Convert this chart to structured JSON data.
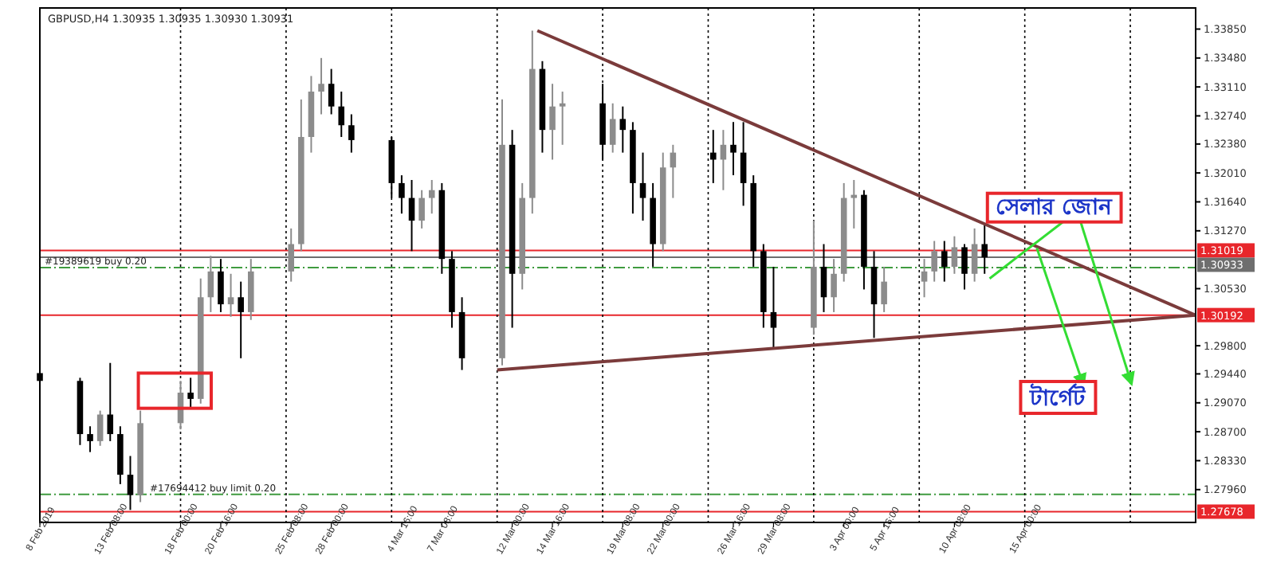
{
  "chart_data": {
    "type": "candlestick",
    "title": "GBPUSD,H4  1.30935 1.30935 1.30930 1.30931",
    "xlim": [
      "2019-02-08T16:00",
      "2019-04-26T08:00"
    ],
    "ylim": [
      1.2754,
      1.3412
    ],
    "xticks": [
      {
        "value": "2019-02-08T16:00",
        "label": "8 Feb 2019"
      },
      {
        "value": "2019-02-13T08:00",
        "label": "13 Feb 08:00"
      },
      {
        "value": "2019-02-18T00:00",
        "label": "18 Feb 00:00"
      },
      {
        "value": "2019-02-20T16:00",
        "label": "20 Feb 16:00"
      },
      {
        "value": "2019-02-25T08:00",
        "label": "25 Feb 08:00"
      },
      {
        "value": "2019-02-28T00:00",
        "label": "28 Feb 00:00"
      },
      {
        "value": "2019-03-04T16:00",
        "label": "4 Mar 16:00"
      },
      {
        "value": "2019-03-07T08:00",
        "label": "7 Mar 08:00"
      },
      {
        "value": "2019-03-12T00:00",
        "label": "12 Mar 00:00"
      },
      {
        "value": "2019-03-14T16:00",
        "label": "14 Mar 16:00"
      },
      {
        "value": "2019-03-19T08:00",
        "label": "19 Mar 08:00"
      },
      {
        "value": "2019-03-22T00:00",
        "label": "22 Mar 00:00"
      },
      {
        "value": "2019-03-26T16:00",
        "label": "26 Mar 16:00"
      },
      {
        "value": "2019-03-29T08:00",
        "label": "29 Mar 08:00"
      },
      {
        "value": "2019-04-03T00:00",
        "label": "3 Apr 00:00"
      },
      {
        "value": "2019-04-05T16:00",
        "label": "5 Apr 16:00"
      },
      {
        "value": "2019-04-10T08:00",
        "label": "10 Apr 08:00"
      },
      {
        "value": "2019-04-15T00:00",
        "label": "15 Apr 00:00"
      }
    ],
    "yticks": [
      {
        "value": 1.3385,
        "label": "1.33850"
      },
      {
        "value": 1.3348,
        "label": "1.33480"
      },
      {
        "value": 1.3311,
        "label": "1.33110"
      },
      {
        "value": 1.3274,
        "label": "1.32740"
      },
      {
        "value": 1.3238,
        "label": "1.32380"
      },
      {
        "value": 1.3201,
        "label": "1.32010"
      },
      {
        "value": 1.3164,
        "label": "1.31640"
      },
      {
        "value": 1.3127,
        "label": "1.31270"
      },
      {
        "value": 1.3053,
        "label": "1.30530"
      },
      {
        "value": 1.298,
        "label": "1.29800"
      },
      {
        "value": 1.2944,
        "label": "1.29440"
      },
      {
        "value": 1.2907,
        "label": "1.29070"
      },
      {
        "value": 1.287,
        "label": "1.28700"
      },
      {
        "value": 1.2833,
        "label": "1.28330"
      },
      {
        "value": 1.2796,
        "label": "1.27960"
      }
    ],
    "series": [
      {
        "x": [
          "2019-02-08T16:00",
          "2019-02-11T08:00",
          "2019-02-12T00:00",
          "2019-02-12T16:00",
          "2019-02-13T08:00",
          "2019-02-14T00:00",
          "2019-02-14T16:00",
          "2019-02-15T08:00",
          "2019-02-18T00:00",
          "2019-02-18T16:00",
          "2019-02-19T08:00",
          "2019-02-20T00:00",
          "2019-02-20T16:00",
          "2019-02-21T08:00",
          "2019-02-22T00:00",
          "2019-02-22T16:00",
          "2019-02-25T08:00",
          "2019-02-26T00:00",
          "2019-02-26T16:00",
          "2019-02-27T08:00",
          "2019-02-28T00:00",
          "2019-02-28T16:00",
          "2019-03-01T08:00",
          "2019-03-04T00:00",
          "2019-03-04T16:00",
          "2019-03-05T08:00",
          "2019-03-06T00:00",
          "2019-03-06T16:00",
          "2019-03-07T08:00",
          "2019-03-08T00:00",
          "2019-03-08T16:00",
          "2019-03-11T08:00",
          "2019-03-12T00:00",
          "2019-03-12T16:00",
          "2019-03-13T08:00",
          "2019-03-14T00:00",
          "2019-03-14T16:00",
          "2019-03-15T08:00",
          "2019-03-18T00:00",
          "2019-03-18T16:00",
          "2019-03-19T08:00",
          "2019-03-20T00:00",
          "2019-03-20T16:00",
          "2019-03-21T08:00",
          "2019-03-22T00:00",
          "2019-03-22T16:00",
          "2019-03-25T08:00",
          "2019-03-26T00:00",
          "2019-03-26T16:00",
          "2019-03-27T08:00",
          "2019-03-28T00:00",
          "2019-03-28T16:00",
          "2019-03-29T08:00",
          "2019-04-01T00:00",
          "2019-04-01T16:00",
          "2019-04-02T08:00",
          "2019-04-03T00:00",
          "2019-04-03T16:00",
          "2019-04-04T08:00",
          "2019-04-05T00:00",
          "2019-04-05T16:00",
          "2019-04-08T08:00",
          "2019-04-09T00:00",
          "2019-04-09T16:00",
          "2019-04-10T08:00",
          "2019-04-11T00:00",
          "2019-04-11T16:00",
          "2019-04-12T08:00"
        ],
        "ohlc": [
          [
            1.2945,
            1.2965,
            1.2926,
            1.2935
          ],
          [
            1.2935,
            1.2939,
            1.2853,
            1.2867
          ],
          [
            1.2867,
            1.2877,
            1.2844,
            1.2858
          ],
          [
            1.2858,
            1.2897,
            1.2852,
            1.2892
          ],
          [
            1.2892,
            1.2958,
            1.2858,
            1.2867
          ],
          [
            1.2867,
            1.2877,
            1.2803,
            1.2815
          ],
          [
            1.2815,
            1.2839,
            1.277,
            1.2789
          ],
          [
            1.2789,
            1.2897,
            1.278,
            1.2881
          ],
          [
            1.2881,
            1.2935,
            1.2873,
            1.292
          ],
          [
            1.292,
            1.2939,
            1.29,
            1.2912
          ],
          [
            1.2912,
            1.3066,
            1.2906,
            1.3042
          ],
          [
            1.3042,
            1.3095,
            1.3023,
            1.3075
          ],
          [
            1.3075,
            1.3091,
            1.3023,
            1.3033
          ],
          [
            1.3033,
            1.3072,
            1.3017,
            1.3042
          ],
          [
            1.3042,
            1.3062,
            1.2964,
            1.3023
          ],
          [
            1.3023,
            1.3091,
            1.3013,
            1.3075
          ],
          [
            1.3075,
            1.313,
            1.3062,
            1.311
          ],
          [
            1.311,
            1.3295,
            1.3101,
            1.3247
          ],
          [
            1.3247,
            1.3325,
            1.3227,
            1.3305
          ],
          [
            1.3305,
            1.3348,
            1.3276,
            1.3315
          ],
          [
            1.3315,
            1.3334,
            1.3276,
            1.3286
          ],
          [
            1.3286,
            1.3305,
            1.3247,
            1.3262
          ],
          [
            1.3262,
            1.3276,
            1.3227,
            1.3243
          ],
          [
            1.3243,
            1.3247,
            1.3169,
            1.3188
          ],
          [
            1.3188,
            1.3198,
            1.3149,
            1.3169
          ],
          [
            1.3169,
            1.3192,
            1.3101,
            1.314
          ],
          [
            1.314,
            1.3179,
            1.313,
            1.3169
          ],
          [
            1.3169,
            1.3192,
            1.3149,
            1.3179
          ],
          [
            1.3179,
            1.3188,
            1.3072,
            1.3091
          ],
          [
            1.3091,
            1.3101,
            1.3003,
            1.3023
          ],
          [
            1.3023,
            1.3042,
            1.2949,
            1.2964
          ],
          [
            1.2964,
            1.3295,
            1.2955,
            1.3237
          ],
          [
            1.3237,
            1.3256,
            1.3003,
            1.3072
          ],
          [
            1.3072,
            1.3188,
            1.3052,
            1.3169
          ],
          [
            1.3169,
            1.3383,
            1.3149,
            1.3334
          ],
          [
            1.3334,
            1.3344,
            1.3227,
            1.3256
          ],
          [
            1.3256,
            1.3315,
            1.3218,
            1.3286
          ],
          [
            1.3286,
            1.3305,
            1.3237,
            1.329
          ],
          [
            1.329,
            1.3315,
            1.3218,
            1.3237
          ],
          [
            1.3237,
            1.329,
            1.3227,
            1.327
          ],
          [
            1.327,
            1.3286,
            1.3227,
            1.3256
          ],
          [
            1.3256,
            1.3266,
            1.3149,
            1.3188
          ],
          [
            1.3188,
            1.3227,
            1.314,
            1.3169
          ],
          [
            1.3169,
            1.3188,
            1.3081,
            1.311
          ],
          [
            1.311,
            1.3227,
            1.3101,
            1.3208
          ],
          [
            1.3208,
            1.3237,
            1.3169,
            1.3227
          ],
          [
            1.3227,
            1.3256,
            1.3188,
            1.3218
          ],
          [
            1.3218,
            1.3256,
            1.3179,
            1.3237
          ],
          [
            1.3237,
            1.3266,
            1.3198,
            1.3227
          ],
          [
            1.3227,
            1.3266,
            1.3159,
            1.3188
          ],
          [
            1.3188,
            1.3198,
            1.3081,
            1.3101
          ],
          [
            1.3101,
            1.311,
            1.3003,
            1.3023
          ],
          [
            1.3023,
            1.3081,
            1.2978,
            1.3003
          ],
          [
            1.3003,
            1.314,
            1.2994,
            1.3081
          ],
          [
            1.3081,
            1.311,
            1.3023,
            1.3042
          ],
          [
            1.3042,
            1.3091,
            1.3023,
            1.3072
          ],
          [
            1.3072,
            1.3188,
            1.3062,
            1.3169
          ],
          [
            1.3169,
            1.3192,
            1.313,
            1.3173
          ],
          [
            1.3173,
            1.3179,
            1.3052,
            1.3081
          ],
          [
            1.3081,
            1.3101,
            1.299,
            1.3033
          ],
          [
            1.3033,
            1.3081,
            1.3023,
            1.3062
          ],
          [
            1.3062,
            1.3091,
            1.3042,
            1.3075
          ],
          [
            1.3075,
            1.3114,
            1.3062,
            1.3101
          ],
          [
            1.3101,
            1.3114,
            1.3062,
            1.3081
          ],
          [
            1.3081,
            1.312,
            1.3072,
            1.3106
          ],
          [
            1.3106,
            1.311,
            1.3052,
            1.3072
          ],
          [
            1.3072,
            1.313,
            1.3062,
            1.311
          ],
          [
            1.311,
            1.3134,
            1.3072,
            1.3093
          ]
        ],
        "colors": [
          "#000000",
          "#000000",
          "#000000",
          "#8c8c8c",
          "#000000",
          "#000000",
          "#000000",
          "#8c8c8c",
          "#8c8c8c",
          "#000000",
          "#8c8c8c",
          "#8c8c8c",
          "#000000",
          "#8c8c8c",
          "#000000",
          "#8c8c8c",
          "#8c8c8c",
          "#8c8c8c",
          "#8c8c8c",
          "#8c8c8c",
          "#000000",
          "#000000",
          "#000000",
          "#000000",
          "#000000",
          "#000000",
          "#8c8c8c",
          "#8c8c8c",
          "#000000",
          "#000000",
          "#000000",
          "#8c8c8c",
          "#000000",
          "#8c8c8c",
          "#8c8c8c",
          "#000000",
          "#8c8c8c",
          "#8c8c8c",
          "#000000",
          "#8c8c8c",
          "#000000",
          "#000000",
          "#000000",
          "#000000",
          "#8c8c8c",
          "#8c8c8c",
          "#000000",
          "#8c8c8c",
          "#000000",
          "#000000",
          "#000000",
          "#000000",
          "#000000",
          "#8c8c8c",
          "#000000",
          "#8c8c8c",
          "#8c8c8c",
          "#8c8c8c",
          "#000000",
          "#000000",
          "#8c8c8c",
          "#8c8c8c",
          "#8c8c8c",
          "#000000",
          "#8c8c8c",
          "#000000",
          "#8c8c8c",
          "#000000"
        ]
      },
      {
        "type": "line",
        "x": [
          "2019-03-13T16:00",
          "2019-04-26T08:00"
        ],
        "values": [
          1.3383,
          1.3019
        ],
        "color": "#7b3b3b"
      },
      {
        "type": "line",
        "x": [
          "2019-03-11T00:00",
          "2019-04-26T08:00"
        ],
        "values": [
          1.2949,
          1.3019
        ],
        "color": "#7b3b3b"
      }
    ],
    "ref_lines": [
      {
        "axis": "y",
        "value": 1.31019,
        "label": "1.31019",
        "color": "#e8262b",
        "line_style": "solid"
      },
      {
        "axis": "y",
        "value": 1.30933,
        "label": "1.30933",
        "color": "#6e6e6e",
        "line_style": "solid"
      },
      {
        "axis": "y",
        "value": 1.308,
        "label": "#19389619 buy 0.20",
        "color": "#3f9b3f",
        "line_style": "dashed"
      },
      {
        "axis": "y",
        "value": 1.30192,
        "label": "1.30192",
        "color": "#e8262b",
        "line_style": "solid"
      },
      {
        "axis": "y",
        "value": 1.279,
        "label": "#17694412 buy limit 0.20",
        "color": "#3f9b3f",
        "line_style": "dashed"
      },
      {
        "axis": "y",
        "value": 1.27678,
        "label": "1.27678",
        "color": "#e8262b",
        "line_style": "solid"
      },
      {
        "axis": "x",
        "value": "2019-02-18T00:00",
        "color": "#000000",
        "line_style": "dotted"
      },
      {
        "axis": "x",
        "value": "2019-02-25T00:00",
        "color": "#000000",
        "line_style": "dotted"
      },
      {
        "axis": "x",
        "value": "2019-03-04T00:00",
        "color": "#000000",
        "line_style": "dotted"
      },
      {
        "axis": "x",
        "value": "2019-03-11T00:00",
        "color": "#000000",
        "line_style": "dotted"
      },
      {
        "axis": "x",
        "value": "2019-03-18T00:00",
        "color": "#000000",
        "line_style": "dotted"
      },
      {
        "axis": "x",
        "value": "2019-03-25T00:00",
        "color": "#000000",
        "line_style": "dotted"
      },
      {
        "axis": "x",
        "value": "2019-04-01T00:00",
        "color": "#000000",
        "line_style": "dotted"
      },
      {
        "axis": "x",
        "value": "2019-04-08T00:00",
        "color": "#000000",
        "line_style": "dotted"
      },
      {
        "axis": "x",
        "value": "2019-04-15T00:00",
        "color": "#000000",
        "line_style": "dotted"
      },
      {
        "axis": "x",
        "value": "2019-04-22T00:00",
        "color": "#000000",
        "line_style": "dotted"
      }
    ],
    "annotations": [
      {
        "text": "সেলার জোন",
        "x": "2019-04-12T16:00",
        "y": 1.3066
      },
      "টার্গেট"
    ]
  }
}
